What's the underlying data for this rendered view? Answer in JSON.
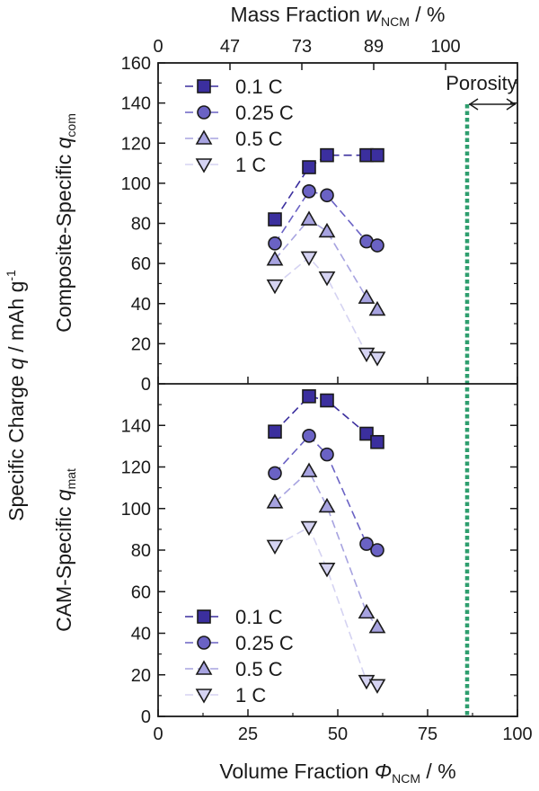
{
  "chart_data": {
    "type": "line",
    "x_axis": {
      "label_main": "Volume Fraction ",
      "label_symbol": "Φ",
      "label_sub": "NCM",
      "label_unit": " / %",
      "range": [
        0,
        100
      ],
      "ticks": [
        0,
        25,
        50,
        75,
        100
      ]
    },
    "top_axis": {
      "label_main": "Mass Fraction ",
      "label_symbol": "w",
      "label_sub": "NCM",
      "label_unit": " / %",
      "ticks": [
        {
          "position": 0,
          "label": "0"
        },
        {
          "position": 20,
          "label": "47"
        },
        {
          "position": 40,
          "label": "73"
        },
        {
          "position": 60,
          "label": "89"
        },
        {
          "position": 80,
          "label": "100"
        }
      ]
    },
    "y_common_label": {
      "main": "Specific Charge ",
      "symbol": "q",
      "unit": " / mAh g",
      "sup": "-1"
    },
    "porosity": {
      "label": "Porosity",
      "x": 86
    },
    "x": [
      32.5,
      42,
      47,
      58,
      61
    ],
    "panels": [
      {
        "name": "composite",
        "ylabel_main": "Composite-Specific  ",
        "ylabel_symbol": "q",
        "ylabel_sub": "com",
        "ylim": [
          0,
          160
        ],
        "yticks": [
          0,
          20,
          40,
          60,
          80,
          100,
          120,
          140,
          160
        ],
        "legend_position": "top-left",
        "series": [
          {
            "name": "0.1 C",
            "marker": "square",
            "color": "#3b2f9e",
            "values": [
              82,
              108,
              114,
              114,
              114
            ]
          },
          {
            "name": "0.25 C",
            "marker": "circle",
            "color": "#6a62c4",
            "values": [
              70,
              96,
              94,
              71,
              69
            ]
          },
          {
            "name": "0.5 C",
            "marker": "triangle-up",
            "color": "#a7a3e0",
            "values": [
              62,
              82,
              76,
              43,
              37
            ]
          },
          {
            "name": "1 C",
            "marker": "triangle-down",
            "color": "#d5d3f2",
            "values": [
              49,
              63,
              53,
              15,
              13
            ]
          }
        ]
      },
      {
        "name": "cam",
        "ylabel_main": "CAM-Specific ",
        "ylabel_symbol": "q",
        "ylabel_sub": "mat",
        "ylim": [
          0,
          160
        ],
        "yticks": [
          0,
          20,
          40,
          60,
          80,
          100,
          120,
          140
        ],
        "legend_position": "bottom-left",
        "series": [
          {
            "name": "0.1 C",
            "marker": "square",
            "color": "#3b2f9e",
            "values": [
              137,
              154,
              152,
              136,
              132
            ]
          },
          {
            "name": "0.25 C",
            "marker": "circle",
            "color": "#6a62c4",
            "values": [
              117,
              135,
              126,
              83,
              80
            ]
          },
          {
            "name": "0.5 C",
            "marker": "triangle-up",
            "color": "#a7a3e0",
            "values": [
              103,
              118,
              101,
              50,
              43
            ]
          },
          {
            "name": "1 C",
            "marker": "triangle-down",
            "color": "#d5d3f2",
            "values": [
              82,
              91,
              71,
              17,
              15
            ]
          }
        ]
      }
    ]
  }
}
